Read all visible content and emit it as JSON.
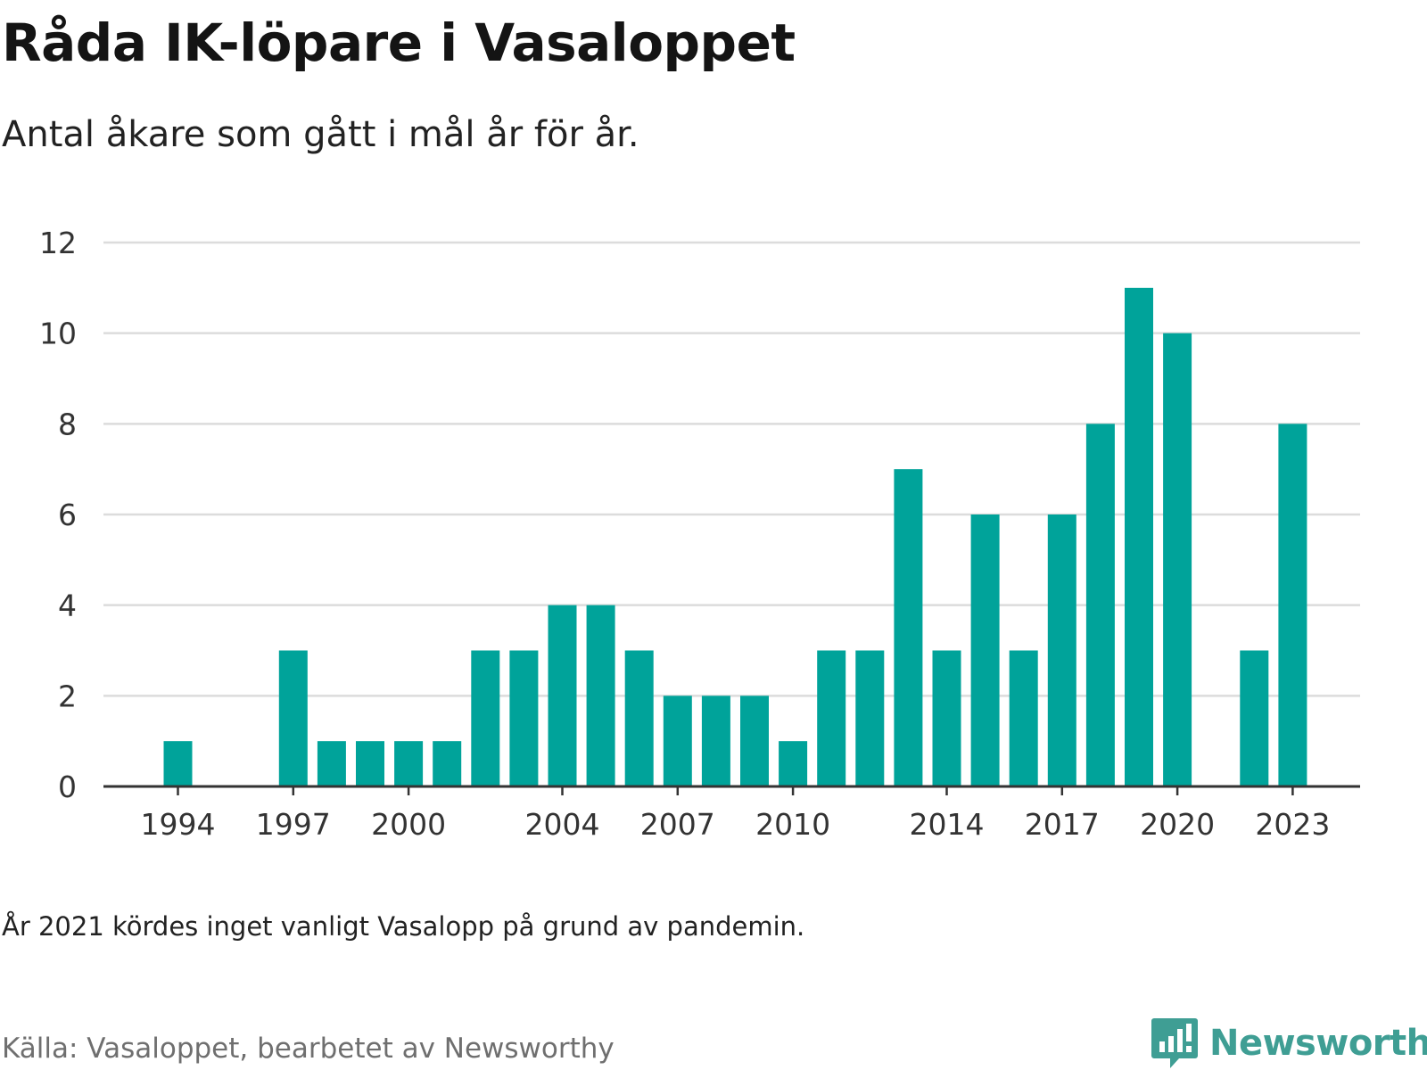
{
  "title": "Råda IK-löpare i Vasaloppet",
  "subtitle": "Antal åkare som gått i mål år för år.",
  "note": "År 2021 kördes inget vanligt Vasalopp på grund av pandemin.",
  "source": "Källa: Vasaloppet, bearbetet av Newsworthy",
  "brand": {
    "name": "Newsworthy",
    "color": "#3f9e94",
    "icon": "bar-chart-speech-bubble-icon"
  },
  "colors": {
    "bar": "#00a39a",
    "grid": "#dcdcdc",
    "axis": "#333333"
  },
  "chart_data": {
    "type": "bar",
    "title": "Råda IK-löpare i Vasaloppet",
    "subtitle": "Antal åkare som gått i mål år för år.",
    "xlabel": "",
    "ylabel": "",
    "ylim": [
      0,
      12
    ],
    "yticks": [
      0,
      2,
      4,
      6,
      8,
      10,
      12
    ],
    "xticks": [
      1994,
      1997,
      2000,
      2004,
      2007,
      2010,
      2014,
      2017,
      2020,
      2023
    ],
    "grid": true,
    "x_range": [
      1994,
      2023
    ],
    "x": [
      1994,
      1997,
      1998,
      1999,
      2000,
      2001,
      2002,
      2003,
      2004,
      2005,
      2006,
      2007,
      2008,
      2009,
      2010,
      2011,
      2012,
      2013,
      2014,
      2015,
      2016,
      2017,
      2018,
      2019,
      2020,
      2022,
      2023
    ],
    "values": [
      1,
      3,
      1,
      1,
      1,
      1,
      3,
      3,
      4,
      4,
      3,
      2,
      2,
      2,
      1,
      3,
      3,
      7,
      3,
      6,
      3,
      6,
      8,
      11,
      10,
      3,
      8
    ]
  }
}
